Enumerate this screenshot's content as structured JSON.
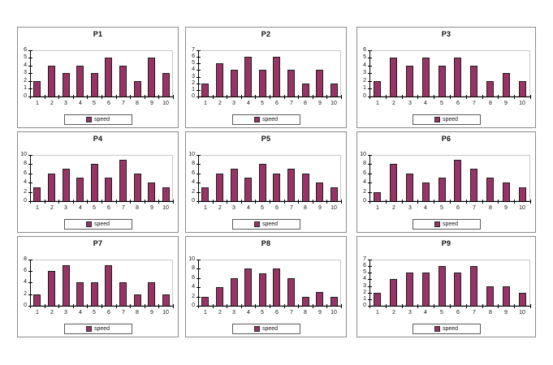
{
  "page": {
    "background": "#ffffff"
  },
  "colors": {
    "bar_fill": "#993366",
    "bar_border": "#1f1f1f",
    "axis": "#000000",
    "plot_border": "#c9c9c9",
    "panel_border": "#8c8c8c",
    "text": "#151515"
  },
  "chart_data": [
    {
      "type": "bar",
      "title": "P1",
      "categories": [
        "1",
        "2",
        "3",
        "4",
        "5",
        "6",
        "7",
        "8",
        "9",
        "10"
      ],
      "values": [
        2,
        4,
        3,
        4,
        3,
        5,
        4,
        2,
        5,
        3
      ],
      "ylim": [
        0,
        6
      ],
      "ystep": 1,
      "legend": [
        "speed"
      ],
      "legend_position": "bottom",
      "grid": false
    },
    {
      "type": "bar",
      "title": "P2",
      "categories": [
        "1",
        "2",
        "3",
        "4",
        "5",
        "6",
        "7",
        "8",
        "9",
        "10"
      ],
      "values": [
        2,
        5,
        4,
        6,
        4,
        6,
        4,
        2,
        4,
        2
      ],
      "ylim": [
        0,
        7
      ],
      "ystep": 1,
      "legend": [
        "speed"
      ],
      "legend_position": "bottom",
      "grid": false
    },
    {
      "type": "bar",
      "title": "P3",
      "categories": [
        "1",
        "2",
        "3",
        "4",
        "5",
        "6",
        "7",
        "8",
        "9",
        "10"
      ],
      "values": [
        2,
        5,
        4,
        5,
        4,
        5,
        4,
        2,
        3,
        2
      ],
      "ylim": [
        0,
        6
      ],
      "ystep": 1,
      "legend": [
        "speed"
      ],
      "legend_position": "bottom",
      "grid": false
    },
    {
      "type": "bar",
      "title": "P4",
      "categories": [
        "1",
        "2",
        "3",
        "4",
        "5",
        "6",
        "7",
        "8",
        "9",
        "10"
      ],
      "values": [
        3,
        6,
        7,
        5,
        8,
        5,
        9,
        6,
        4,
        3
      ],
      "ylim": [
        0,
        10
      ],
      "ystep": 2,
      "legend": [
        "speed"
      ],
      "legend_position": "bottom",
      "grid": false
    },
    {
      "type": "bar",
      "title": "P5",
      "categories": [
        "1",
        "2",
        "3",
        "4",
        "5",
        "6",
        "7",
        "8",
        "9",
        "10"
      ],
      "values": [
        3,
        6,
        7,
        5,
        8,
        6,
        7,
        6,
        4,
        3
      ],
      "ylim": [
        0,
        10
      ],
      "ystep": 2,
      "legend": [
        "speed"
      ],
      "legend_position": "bottom",
      "grid": false
    },
    {
      "type": "bar",
      "title": "P6",
      "categories": [
        "1",
        "2",
        "3",
        "4",
        "5",
        "6",
        "7",
        "8",
        "9",
        "10"
      ],
      "values": [
        2,
        8,
        6,
        4,
        5,
        9,
        7,
        5,
        4,
        3
      ],
      "ylim": [
        0,
        10
      ],
      "ystep": 2,
      "legend": [
        "speed"
      ],
      "legend_position": "bottom",
      "grid": false
    },
    {
      "type": "bar",
      "title": "P7",
      "categories": [
        "1",
        "2",
        "3",
        "4",
        "5",
        "6",
        "7",
        "8",
        "9",
        "10"
      ],
      "values": [
        2,
        6,
        7,
        4,
        4,
        7,
        4,
        2,
        4,
        2
      ],
      "ylim": [
        0,
        8
      ],
      "ystep": 2,
      "legend": [
        "speed"
      ],
      "legend_position": "bottom",
      "grid": false
    },
    {
      "type": "bar",
      "title": "P8",
      "categories": [
        "1",
        "2",
        "3",
        "4",
        "5",
        "6",
        "7",
        "8",
        "9",
        "10"
      ],
      "values": [
        2,
        4,
        6,
        8,
        7,
        8,
        6,
        2,
        3,
        2
      ],
      "ylim": [
        0,
        10
      ],
      "ystep": 2,
      "legend": [
        "speed"
      ],
      "legend_position": "bottom",
      "grid": false
    },
    {
      "type": "bar",
      "title": "P9",
      "categories": [
        "1",
        "2",
        "3",
        "4",
        "5",
        "6",
        "7",
        "8",
        "9",
        "10"
      ],
      "values": [
        2,
        4,
        5,
        5,
        6,
        5,
        6,
        3,
        3,
        2
      ],
      "ylim": [
        0,
        7
      ],
      "ystep": 1,
      "legend": [
        "speed"
      ],
      "legend_position": "bottom",
      "grid": false
    }
  ]
}
